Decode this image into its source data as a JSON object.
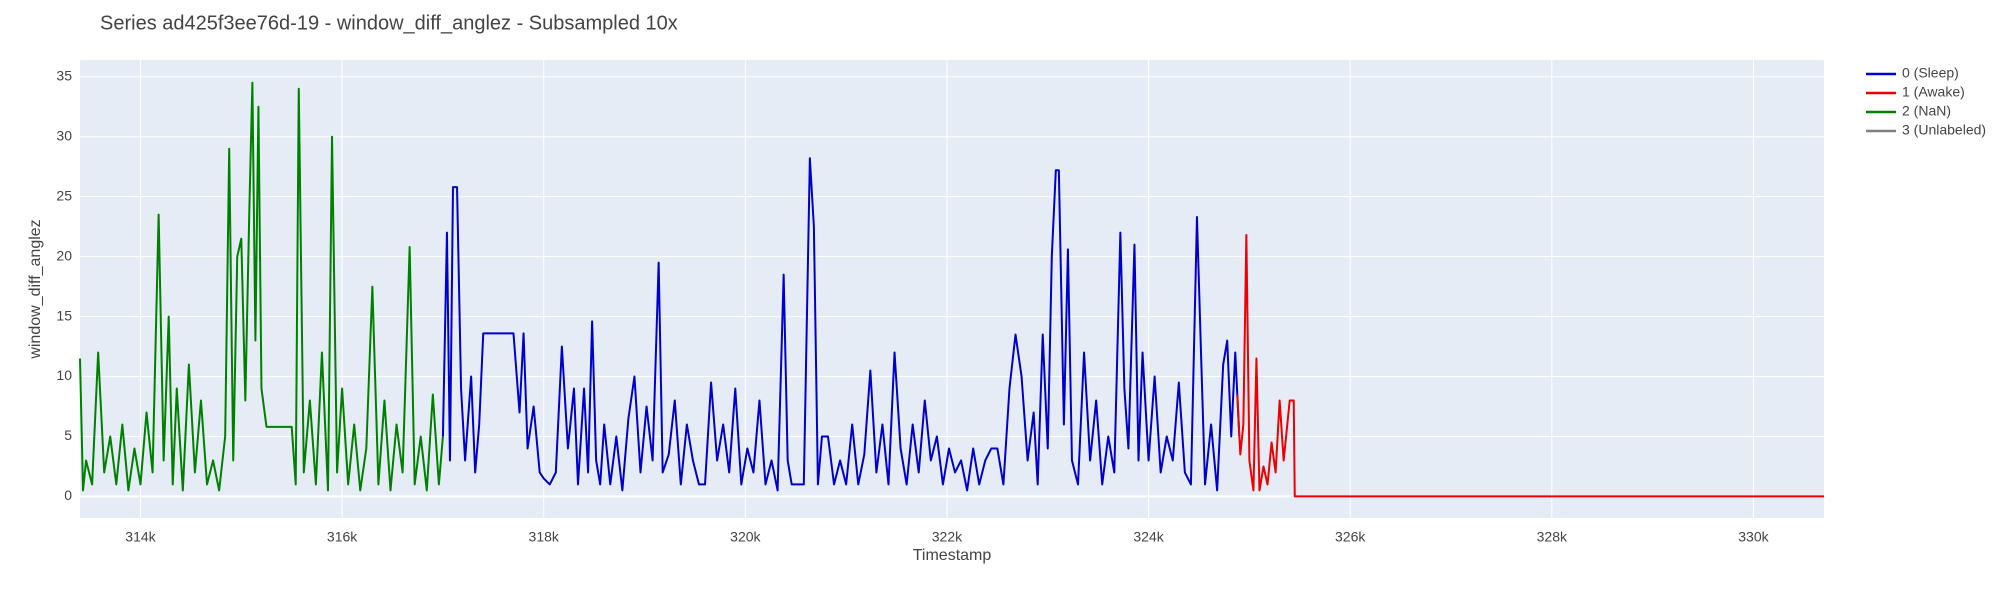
{
  "chart_data": {
    "type": "line",
    "title": "Series ad425f3ee76d-19 - window_diff_anglez - Subsampled 10x",
    "x_label": "Timestamp",
    "y_label": "window_diff_anglez",
    "xlim": [
      313400,
      330700
    ],
    "ylim": [
      -1.8,
      36.4
    ],
    "xticks": [
      {
        "value": 314000,
        "label": "314k"
      },
      {
        "value": 316000,
        "label": "316k"
      },
      {
        "value": 318000,
        "label": "318k"
      },
      {
        "value": 320000,
        "label": "320k"
      },
      {
        "value": 322000,
        "label": "322k"
      },
      {
        "value": 324000,
        "label": "324k"
      },
      {
        "value": 326000,
        "label": "326k"
      },
      {
        "value": 328000,
        "label": "328k"
      },
      {
        "value": 330000,
        "label": "330k"
      }
    ],
    "yticks": [
      0,
      5,
      10,
      15,
      20,
      25,
      30,
      35
    ],
    "grid": true,
    "legend": "right",
    "series": [
      {
        "name": "0 (Sleep)",
        "color": "#0000cd",
        "x": [
          317000,
          317040,
          317070,
          317100,
          317140,
          317180,
          317220,
          317280,
          317320,
          317360,
          317400,
          317700,
          317760,
          317800,
          317840,
          317900,
          317960,
          318000,
          318060,
          318120,
          318180,
          318240,
          318300,
          318340,
          318400,
          318440,
          318480,
          318520,
          318560,
          318600,
          318660,
          318720,
          318780,
          318840,
          318900,
          318960,
          319020,
          319080,
          319140,
          319180,
          319240,
          319300,
          319360,
          319420,
          319480,
          319540,
          319600,
          319660,
          319720,
          319780,
          319840,
          319900,
          319960,
          320020,
          320080,
          320140,
          320200,
          320260,
          320320,
          320380,
          320420,
          320460,
          320520,
          320580,
          320640,
          320680,
          320720,
          320760,
          320820,
          320880,
          320940,
          321000,
          321060,
          321120,
          321180,
          321240,
          321300,
          321360,
          321420,
          321480,
          321540,
          321600,
          321660,
          321720,
          321780,
          321840,
          321900,
          321960,
          322020,
          322080,
          322140,
          322200,
          322260,
          322320,
          322380,
          322440,
          322500,
          322560,
          322620,
          322680,
          322740,
          322800,
          322860,
          322900,
          322950,
          323000,
          323040,
          323080,
          323110,
          323160,
          323200,
          323240,
          323300,
          323360,
          323420,
          323480,
          323540,
          323600,
          323660,
          323720,
          323760,
          323800,
          323860,
          323900,
          323940,
          324000,
          324060,
          324120,
          324180,
          324240,
          324300,
          324360,
          324420,
          324480,
          324520,
          324560,
          324620,
          324680,
          324740,
          324780,
          324820,
          324860,
          324900
        ],
        "values": [
          5,
          22,
          3,
          25.8,
          25.8,
          9,
          3,
          10,
          2,
          6,
          13.6,
          13.6,
          7,
          13.6,
          4,
          7.5,
          2,
          1.5,
          1,
          2,
          12.5,
          4,
          9,
          1,
          9,
          2,
          14.6,
          3,
          1,
          6,
          1,
          5,
          0.5,
          6.5,
          10,
          2,
          7.5,
          3,
          19.5,
          2,
          3.5,
          8,
          1,
          6,
          3,
          1,
          1,
          9.5,
          3,
          6,
          2,
          9,
          1,
          4,
          2,
          8,
          1,
          3,
          0.5,
          18.5,
          3,
          1,
          1,
          1,
          28.2,
          22.5,
          1,
          5,
          5,
          1,
          3,
          1,
          6,
          1,
          3.5,
          10.5,
          2,
          6,
          1,
          12,
          4,
          1,
          6,
          2,
          8,
          3,
          5,
          1,
          4,
          2,
          3,
          0.5,
          4,
          1,
          3,
          4,
          4,
          1,
          9,
          13.5,
          10,
          3,
          7,
          1,
          13.5,
          4,
          20,
          27.2,
          27.2,
          6,
          20.6,
          3,
          1,
          12,
          3,
          8,
          1,
          5,
          2,
          22,
          9,
          4,
          21,
          3,
          12,
          3,
          10,
          2,
          5,
          3,
          9.5,
          2,
          1,
          23.3,
          12,
          1,
          6,
          0.5,
          11,
          13,
          5,
          12,
          5
        ],
        "axis": "y"
      },
      {
        "name": "1 (Awake)",
        "color": "#ee0000",
        "x": [
          324880,
          324910,
          324940,
          324970,
          325000,
          325040,
          325070,
          325100,
          325140,
          325180,
          325220,
          325260,
          325300,
          325340,
          325400,
          325440,
          325450,
          330700
        ],
        "values": [
          8.5,
          3.5,
          6,
          21.8,
          3,
          0.5,
          11.5,
          0.5,
          2.5,
          1,
          4.5,
          2,
          8,
          3,
          8,
          8,
          0,
          0
        ]
      },
      {
        "name": "2 (NaN)",
        "color": "#008000",
        "x": [
          313400,
          313430,
          313460,
          313520,
          313580,
          313640,
          313700,
          313760,
          313820,
          313880,
          313940,
          314000,
          314060,
          314120,
          314180,
          314230,
          314280,
          314320,
          314360,
          314420,
          314480,
          314540,
          314600,
          314660,
          314720,
          314780,
          314840,
          314880,
          314920,
          314960,
          315000,
          315040,
          315080,
          315110,
          315140,
          315170,
          315200,
          315250,
          315500,
          315540,
          315570,
          315620,
          315680,
          315740,
          315800,
          315860,
          315900,
          315950,
          316000,
          316060,
          316120,
          316180,
          316240,
          316300,
          316360,
          316420,
          316480,
          316540,
          316600,
          316670,
          316720,
          316780,
          316840,
          316900,
          316960,
          317000
        ],
        "values": [
          11.5,
          0.5,
          3,
          1,
          12,
          2,
          5,
          1,
          6,
          0.5,
          4,
          1,
          7,
          2,
          23.5,
          3,
          15,
          1,
          9,
          0.5,
          11,
          2,
          8,
          1,
          3,
          0.5,
          5,
          29,
          3,
          20,
          21.5,
          8,
          24,
          34.5,
          13,
          32.5,
          9,
          5.8,
          5.8,
          1,
          34,
          2,
          8,
          1,
          12,
          0.5,
          30,
          2,
          9,
          1,
          6,
          0.5,
          4,
          17.5,
          1,
          8,
          0.5,
          6,
          2,
          20.8,
          1,
          5,
          0.5,
          8.5,
          1,
          5
        ]
      },
      {
        "name": "3 (Unlabeled)",
        "color": "#808080",
        "x": [],
        "values": []
      }
    ]
  }
}
